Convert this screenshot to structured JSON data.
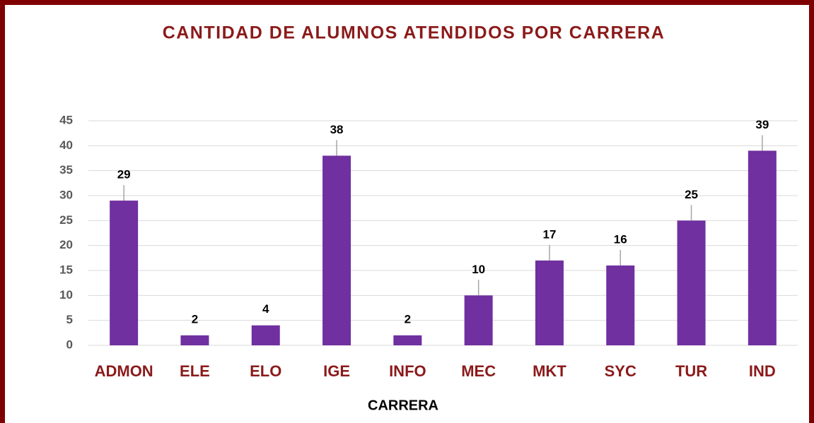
{
  "chart_data": {
    "type": "bar",
    "title": "CANTIDAD DE ALUMNOS ATENDIDOS POR CARRERA",
    "x_label": "CARRERA",
    "categories": [
      "ADMON",
      "ELE",
      "ELO",
      "IGE",
      "INFO",
      "MEC",
      "MKT",
      "SYC",
      "TUR",
      "IND"
    ],
    "values": [
      29,
      2,
      4,
      38,
      2,
      10,
      17,
      16,
      25,
      39
    ],
    "color": "#7030a0",
    "ylim": [
      0,
      45
    ],
    "yticks": [
      0,
      5,
      10,
      15,
      20,
      25,
      30,
      35,
      40,
      45
    ],
    "grid": true
  }
}
